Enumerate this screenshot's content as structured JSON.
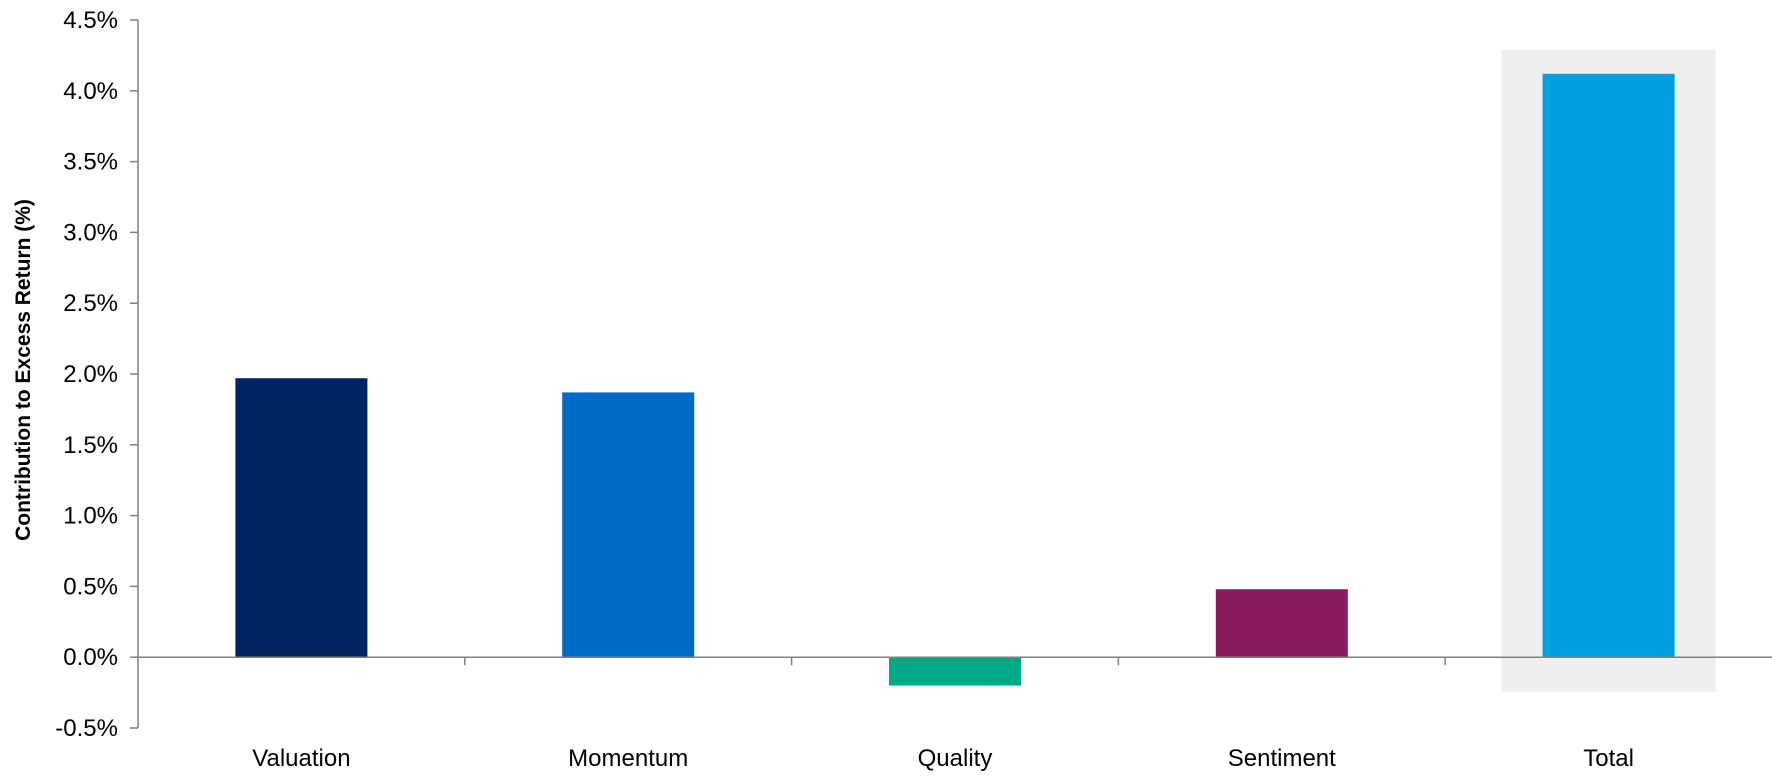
{
  "chart_data": {
    "type": "bar",
    "title": "",
    "xlabel": "",
    "ylabel": "Contribution to Excess Return (%)",
    "categories": [
      "Valuation",
      "Momentum",
      "Quality",
      "Sentiment",
      "Total"
    ],
    "values": [
      1.97,
      1.87,
      -0.2,
      0.48,
      4.12
    ],
    "ylim": [
      -0.5,
      4.5
    ],
    "yticks": [
      -0.5,
      0.0,
      0.5,
      1.0,
      1.5,
      2.0,
      2.5,
      3.0,
      3.5,
      4.0,
      4.5
    ],
    "ytick_labels": [
      "-0.5%",
      "0.0%",
      "0.5%",
      "1.0%",
      "1.5%",
      "2.0%",
      "2.5%",
      "3.0%",
      "3.5%",
      "4.0%",
      "4.5%"
    ],
    "bar_colors": [
      "#002366",
      "#006BC6",
      "#00A886",
      "#8A1A5E",
      "#00A0E0"
    ],
    "highlight_category": "Total",
    "highlight_color": "#EFEFEF",
    "axis_color": "#7F7F7F",
    "grid": false,
    "legend": "none"
  }
}
